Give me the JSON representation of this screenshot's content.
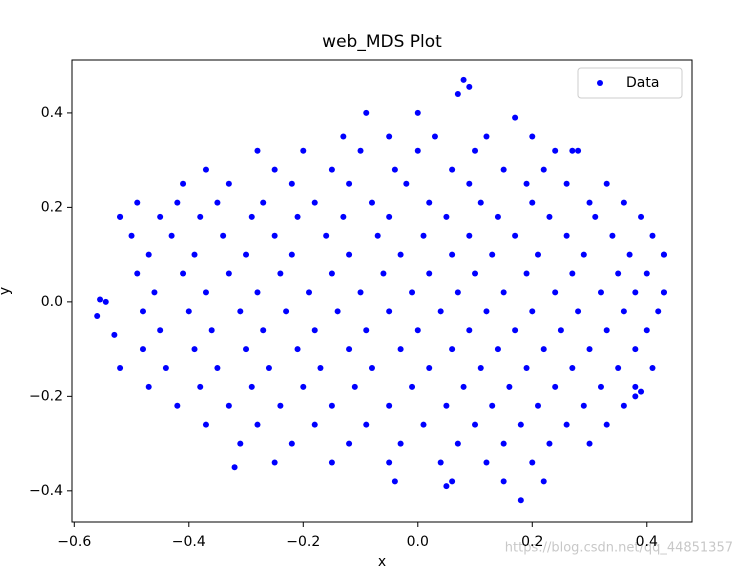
{
  "chart_data": {
    "type": "scatter",
    "title": "web_MDS Plot",
    "x_label": "x",
    "y_label": "y",
    "xlim": [
      -0.604,
      0.479
    ],
    "ylim": [
      -0.466,
      0.512
    ],
    "xticks": [
      {
        "value": -0.6,
        "label": "−0.6"
      },
      {
        "value": -0.4,
        "label": "−0.4"
      },
      {
        "value": -0.2,
        "label": "−0.2"
      },
      {
        "value": 0,
        "label": "0.0"
      },
      0.2,
      0.4
    ],
    "yticks": [
      {
        "value": -0.4,
        "label": "−0.4"
      },
      {
        "value": -0.2,
        "label": "−0.2"
      },
      {
        "value": 0,
        "label": "0.0"
      },
      0.2,
      0.4
    ],
    "legend": "upper right",
    "grid": false,
    "series": [
      {
        "name": "Data",
        "color": "#0000ff",
        "x": [
          -0.13,
          -0.05,
          0.03,
          0.12,
          0.2,
          -0.28,
          -0.2,
          -0.1,
          0.0,
          0.1,
          0.24,
          0.28,
          -0.37,
          -0.25,
          -0.15,
          -0.04,
          0.06,
          0.15,
          0.22,
          -0.41,
          -0.33,
          -0.22,
          -0.12,
          -0.02,
          0.09,
          0.19,
          0.26,
          0.33,
          -0.49,
          -0.42,
          -0.35,
          -0.27,
          -0.18,
          -0.08,
          0.02,
          0.11,
          0.2,
          0.3,
          0.36,
          -0.52,
          -0.45,
          -0.38,
          -0.29,
          -0.21,
          -0.13,
          -0.05,
          0.05,
          0.14,
          0.23,
          0.31,
          0.39,
          -0.5,
          -0.43,
          -0.34,
          -0.25,
          -0.16,
          -0.07,
          0.01,
          0.09,
          0.17,
          0.26,
          0.34,
          0.41,
          -0.47,
          -0.39,
          -0.3,
          -0.22,
          -0.12,
          -0.03,
          0.06,
          0.13,
          0.21,
          0.29,
          0.37,
          0.43,
          -0.49,
          -0.41,
          -0.33,
          -0.24,
          -0.15,
          -0.06,
          0.02,
          0.1,
          0.19,
          0.27,
          0.35,
          0.4,
          -0.46,
          -0.37,
          -0.28,
          -0.19,
          -0.1,
          -0.01,
          0.07,
          0.15,
          0.24,
          0.32,
          0.38,
          0.43,
          -0.48,
          -0.4,
          -0.31,
          -0.23,
          -0.14,
          -0.05,
          0.04,
          0.12,
          0.2,
          0.28,
          0.36,
          0.42,
          -0.45,
          -0.36,
          -0.27,
          -0.18,
          -0.09,
          0.0,
          0.09,
          0.17,
          0.25,
          0.33,
          0.4,
          -0.48,
          -0.39,
          -0.3,
          -0.21,
          -0.12,
          -0.03,
          0.06,
          0.14,
          0.22,
          0.3,
          0.38,
          -0.44,
          -0.35,
          -0.26,
          -0.17,
          -0.08,
          0.02,
          0.11,
          0.19,
          0.27,
          0.35,
          0.41,
          -0.47,
          -0.38,
          -0.29,
          -0.2,
          -0.11,
          -0.01,
          0.08,
          0.16,
          0.24,
          0.32,
          0.38,
          -0.42,
          -0.33,
          -0.24,
          -0.15,
          -0.05,
          0.05,
          0.13,
          0.21,
          0.29,
          0.36,
          -0.37,
          -0.28,
          -0.18,
          -0.09,
          0.01,
          0.1,
          0.18,
          0.26,
          0.33,
          -0.31,
          -0.22,
          -0.12,
          -0.03,
          0.07,
          0.15,
          0.23,
          0.3,
          -0.25,
          -0.15,
          -0.05,
          0.04,
          0.12,
          0.2,
          -0.04,
          0.06,
          0.15,
          0.22,
          -0.56,
          -0.555,
          -0.545,
          0.08,
          0.09,
          0.07,
          -0.09,
          0.18,
          0.43,
          0.43,
          0.38,
          -0.32,
          0.05,
          -0.52,
          -0.53,
          -0.52,
          0.39,
          0.27,
          0.17,
          0.0
        ],
        "y": [
          0.35,
          0.35,
          0.35,
          0.35,
          0.35,
          0.32,
          0.32,
          0.32,
          0.32,
          0.32,
          0.32,
          0.32,
          0.28,
          0.28,
          0.28,
          0.28,
          0.28,
          0.28,
          0.28,
          0.25,
          0.25,
          0.25,
          0.25,
          0.25,
          0.25,
          0.25,
          0.25,
          0.25,
          0.21,
          0.21,
          0.21,
          0.21,
          0.21,
          0.21,
          0.21,
          0.21,
          0.21,
          0.21,
          0.21,
          0.18,
          0.18,
          0.18,
          0.18,
          0.18,
          0.18,
          0.18,
          0.18,
          0.18,
          0.18,
          0.18,
          0.18,
          0.14,
          0.14,
          0.14,
          0.14,
          0.14,
          0.14,
          0.14,
          0.14,
          0.14,
          0.14,
          0.14,
          0.14,
          0.1,
          0.1,
          0.1,
          0.1,
          0.1,
          0.1,
          0.1,
          0.1,
          0.1,
          0.1,
          0.1,
          0.1,
          0.06,
          0.06,
          0.06,
          0.06,
          0.06,
          0.06,
          0.06,
          0.06,
          0.06,
          0.06,
          0.06,
          0.06,
          0.02,
          0.02,
          0.02,
          0.02,
          0.02,
          0.02,
          0.02,
          0.02,
          0.02,
          0.02,
          0.02,
          0.02,
          -0.02,
          -0.02,
          -0.02,
          -0.02,
          -0.02,
          -0.02,
          -0.02,
          -0.02,
          -0.02,
          -0.02,
          -0.02,
          -0.02,
          -0.06,
          -0.06,
          -0.06,
          -0.06,
          -0.06,
          -0.06,
          -0.06,
          -0.06,
          -0.06,
          -0.06,
          -0.06,
          -0.1,
          -0.1,
          -0.1,
          -0.1,
          -0.1,
          -0.1,
          -0.1,
          -0.1,
          -0.1,
          -0.1,
          -0.1,
          -0.14,
          -0.14,
          -0.14,
          -0.14,
          -0.14,
          -0.14,
          -0.14,
          -0.14,
          -0.14,
          -0.14,
          -0.14,
          -0.18,
          -0.18,
          -0.18,
          -0.18,
          -0.18,
          -0.18,
          -0.18,
          -0.18,
          -0.18,
          -0.18,
          -0.18,
          -0.22,
          -0.22,
          -0.22,
          -0.22,
          -0.22,
          -0.22,
          -0.22,
          -0.22,
          -0.22,
          -0.22,
          -0.26,
          -0.26,
          -0.26,
          -0.26,
          -0.26,
          -0.26,
          -0.26,
          -0.26,
          -0.26,
          -0.3,
          -0.3,
          -0.3,
          -0.3,
          -0.3,
          -0.3,
          -0.3,
          -0.3,
          -0.34,
          -0.34,
          -0.34,
          -0.34,
          -0.34,
          -0.34,
          -0.38,
          -0.38,
          -0.38,
          -0.38,
          -0.03,
          0.005,
          0.0,
          0.47,
          0.455,
          0.44,
          0.4,
          -0.42,
          0.1,
          0.02,
          -0.2,
          -0.35,
          -0.39,
          0.18,
          -0.07,
          -0.14,
          -0.19,
          0.32,
          0.39,
          0.4
        ]
      }
    ]
  },
  "watermark": "https://blog.csdn.net/qq_44851357"
}
